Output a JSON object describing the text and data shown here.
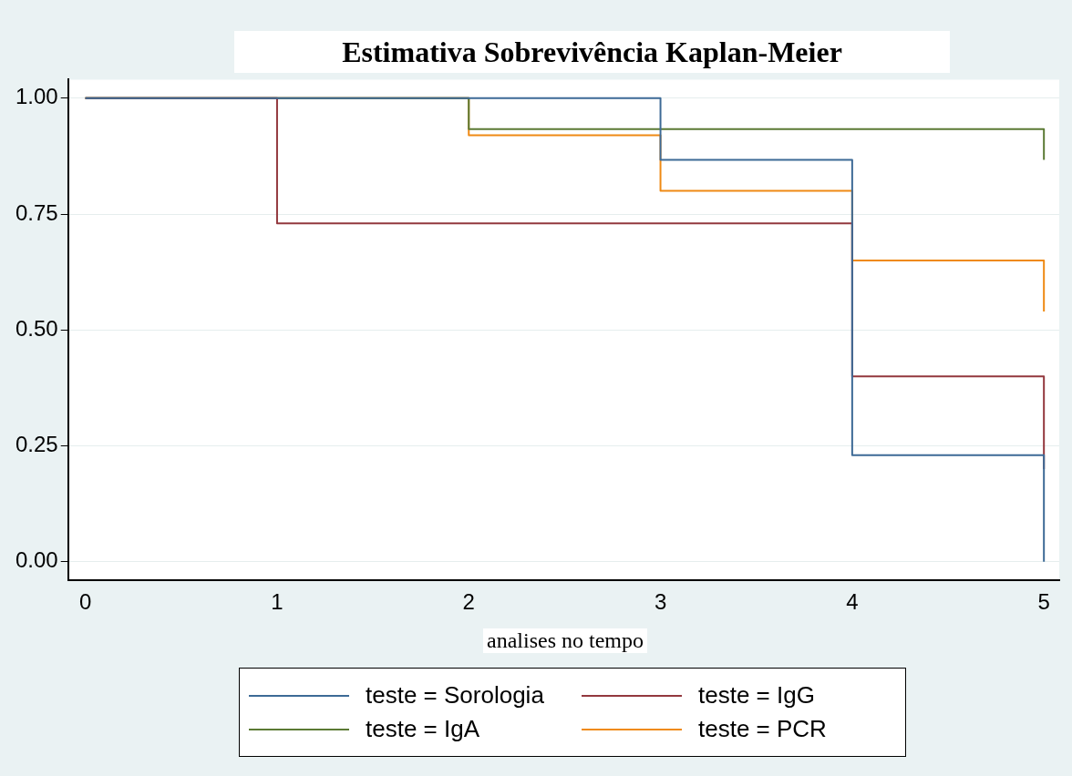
{
  "chart_data": {
    "type": "step",
    "title": "Estimativa Sobrevivência Kaplan-Meier",
    "xlabel": "analises no tempo",
    "x": [
      0,
      1,
      2,
      3,
      4,
      5
    ],
    "series": [
      {
        "name": "teste = Sorologia",
        "color": "#3d6a96",
        "values": [
          1,
          1,
          1,
          0.867,
          0.23,
          0
        ]
      },
      {
        "name": "teste = IgG",
        "color": "#93383e",
        "values": [
          1,
          0.73,
          0.73,
          0.73,
          0.4,
          0.2
        ]
      },
      {
        "name": "teste = IgA",
        "color": "#5b7a34",
        "values": [
          1,
          1,
          0.933,
          0.933,
          0.933,
          0.867
        ]
      },
      {
        "name": "teste = PCR",
        "color": "#ef8a14",
        "values": [
          1,
          1,
          0.92,
          0.8,
          0.65,
          0.54
        ]
      }
    ],
    "xlim": [
      -0.09,
      5.08
    ],
    "xticks": [
      0,
      1,
      2,
      3,
      4,
      5
    ],
    "ylim": [
      -0.04,
      1.04
    ],
    "yticks": [
      {
        "value": 0,
        "label": "0.00"
      },
      {
        "value": 0.25,
        "label": "0.25"
      },
      {
        "value": 0.5,
        "label": "0.50"
      },
      {
        "value": 0.75,
        "label": "0.75"
      },
      {
        "value": 1,
        "label": "1.00"
      }
    ],
    "grid": "y",
    "legend": "bottom",
    "marker": "none",
    "line_style": "solid"
  }
}
